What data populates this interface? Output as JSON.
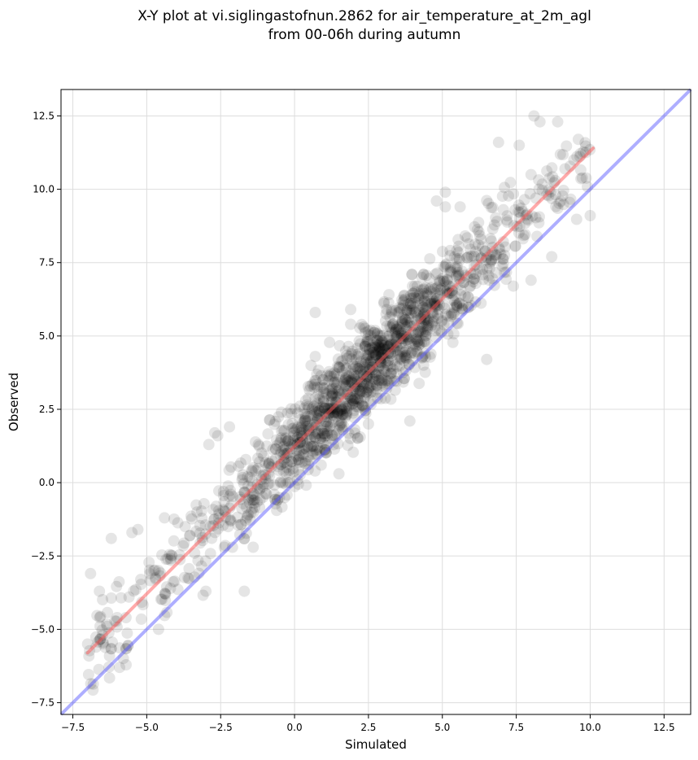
{
  "chart_data": {
    "type": "scatter",
    "title": [
      "X-Y plot at vi.siglingastofnun.2862 for air_temperature_at_2m_agl",
      "from 00-06h during autumn"
    ],
    "xlabel": "Simulated",
    "ylabel": "Observed",
    "xlim": [
      -7.9,
      13.4
    ],
    "ylim": [
      -7.9,
      13.4
    ],
    "xticks": [
      -7.5,
      -5.0,
      -2.5,
      0.0,
      2.5,
      5.0,
      7.5,
      10.0,
      12.5
    ],
    "yticks": [
      -7.5,
      -5.0,
      -2.5,
      0.0,
      2.5,
      5.0,
      7.5,
      10.0,
      12.5
    ],
    "xtick_labels": [
      "−7.5",
      "−5.0",
      "−2.5",
      "0.0",
      "2.5",
      "5.0",
      "7.5",
      "10.0",
      "12.5"
    ],
    "ytick_labels": [
      "−7.5",
      "−5.0",
      "−2.5",
      "0.0",
      "2.5",
      "5.0",
      "7.5",
      "10.0",
      "12.5"
    ],
    "grid": true,
    "point_color": "#000000",
    "point_opacity": 0.1,
    "series": [
      {
        "type": "scatter",
        "trend": {
          "slope": 1.01,
          "intercept": 1.3,
          "std": 0.75
        },
        "x_range": [
          -7.0,
          10.0
        ],
        "count": 1500,
        "explicit_points": [
          [
            -7.0,
            -5.5
          ],
          [
            -6.9,
            -3.1
          ],
          [
            -6.6,
            -3.7
          ],
          [
            -6.5,
            -5.2
          ],
          [
            -6.2,
            -1.9
          ],
          [
            -6.0,
            -4.6
          ],
          [
            -5.7,
            -4.6
          ],
          [
            -5.6,
            -3.9
          ],
          [
            -5.5,
            -1.7
          ],
          [
            -5.3,
            -1.6
          ],
          [
            -5.2,
            -3.3
          ],
          [
            -4.9,
            -3.1
          ],
          [
            -4.6,
            -5.0
          ],
          [
            -4.4,
            -1.2
          ],
          [
            -4.2,
            -3.6
          ],
          [
            -3.7,
            -1.5
          ],
          [
            -3.3,
            -1.0
          ],
          [
            -3.0,
            -3.7
          ],
          [
            -2.9,
            1.3
          ],
          [
            -2.7,
            1.7
          ],
          [
            -2.6,
            1.6
          ],
          [
            -2.2,
            1.9
          ],
          [
            -2.1,
            -2.2
          ],
          [
            -1.7,
            -3.7
          ],
          [
            -1.4,
            -2.2
          ],
          [
            0.7,
            4.3
          ],
          [
            0.7,
            5.8
          ],
          [
            1.2,
            1.9
          ],
          [
            1.5,
            0.3
          ],
          [
            1.9,
            5.4
          ],
          [
            1.9,
            5.9
          ],
          [
            2.3,
            3.2
          ],
          [
            2.5,
            2.0
          ],
          [
            3.9,
            2.1
          ],
          [
            4.8,
            9.6
          ],
          [
            5.1,
            9.4
          ],
          [
            5.1,
            9.9
          ],
          [
            5.6,
            9.4
          ],
          [
            6.5,
            4.2
          ],
          [
            6.9,
            11.6
          ],
          [
            7.4,
            6.7
          ],
          [
            7.6,
            11.5
          ],
          [
            8.0,
            6.9
          ],
          [
            8.1,
            12.5
          ],
          [
            8.3,
            12.3
          ],
          [
            8.7,
            7.7
          ],
          [
            8.9,
            12.3
          ],
          [
            9.6,
            11.7
          ],
          [
            10.0,
            9.1
          ],
          [
            8.0,
            10.5
          ]
        ],
        "color": "#000000"
      },
      {
        "type": "line",
        "x": [
          -7.0,
          10.1
        ],
        "y": [
          -5.8,
          11.4
        ],
        "color": "#ff5555",
        "opacity": 0.5
      },
      {
        "type": "line",
        "x": [
          -7.9,
          13.4
        ],
        "y": [
          -7.9,
          13.4
        ],
        "color": "#4b4bff",
        "opacity": 0.45
      }
    ]
  }
}
